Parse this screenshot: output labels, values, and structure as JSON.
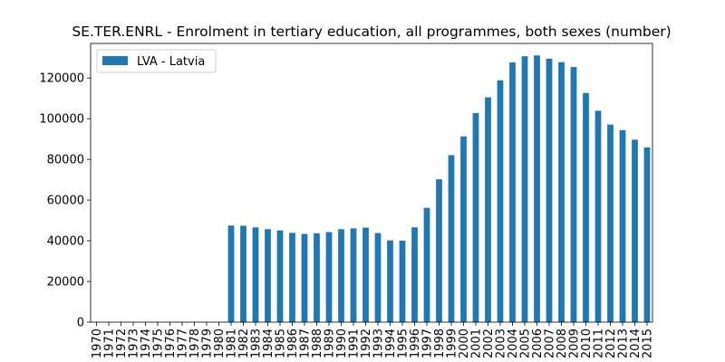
{
  "chart_data": {
    "type": "bar",
    "title": "SE.TER.ENRL - Enrolment in tertiary education, all programmes, both sexes (number)",
    "xlabel": "",
    "ylabel": "",
    "ylim": [
      0,
      137000
    ],
    "yticks": [
      0,
      20000,
      40000,
      60000,
      80000,
      100000,
      120000
    ],
    "grid": false,
    "legend_position": "top-left",
    "categories": [
      "1970",
      "1971",
      "1972",
      "1973",
      "1974",
      "1975",
      "1976",
      "1977",
      "1978",
      "1979",
      "1980",
      "1981",
      "1982",
      "1983",
      "1984",
      "1985",
      "1986",
      "1987",
      "1988",
      "1989",
      "1990",
      "1991",
      "1992",
      "1993",
      "1994",
      "1995",
      "1996",
      "1997",
      "1998",
      "1999",
      "2000",
      "2001",
      "2002",
      "2003",
      "2004",
      "2005",
      "2006",
      "2007",
      "2008",
      "2009",
      "2010",
      "2011",
      "2012",
      "2013",
      "2014",
      "2015"
    ],
    "series": [
      {
        "name": "LVA - Latvia",
        "color": "#1f77b4",
        "values": [
          null,
          null,
          null,
          null,
          null,
          null,
          null,
          null,
          null,
          null,
          null,
          47500,
          47400,
          46600,
          45700,
          45100,
          43900,
          43400,
          43700,
          44300,
          45700,
          46100,
          46500,
          43800,
          40200,
          40100,
          46600,
          56200,
          70200,
          82100,
          91300,
          102800,
          110500,
          118900,
          127700,
          130700,
          131100,
          129500,
          127800,
          125400,
          112600,
          103900,
          97100,
          94400,
          89700,
          85900
        ]
      }
    ]
  }
}
